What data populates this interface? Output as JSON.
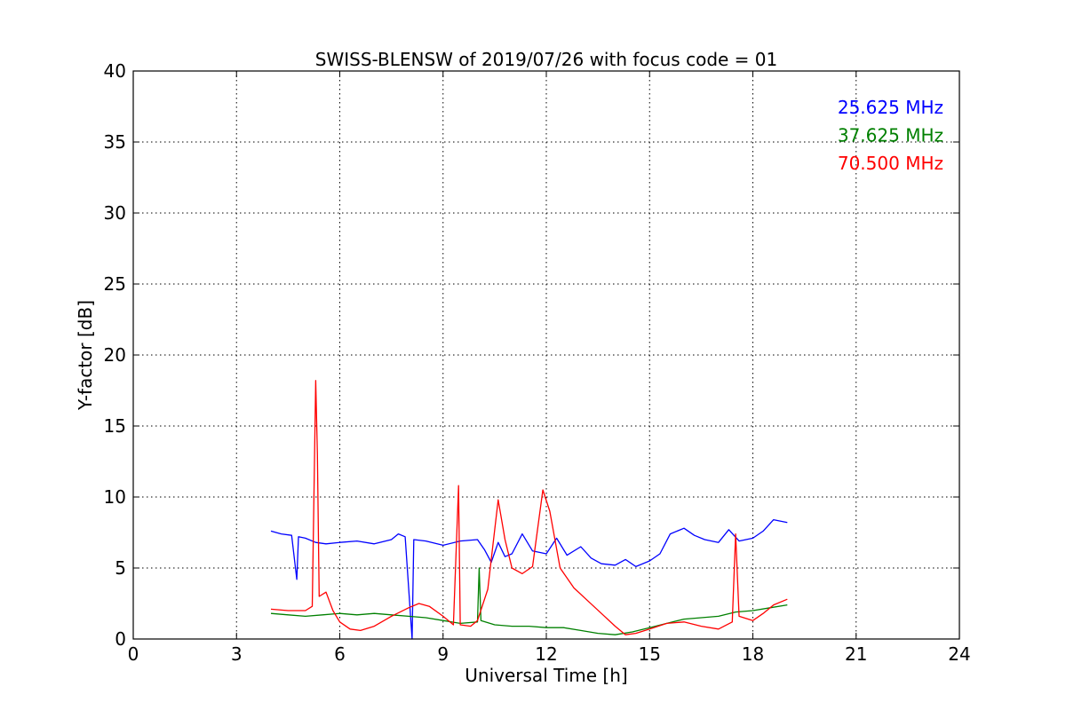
{
  "chart_data": {
    "type": "line",
    "title": "SWISS-BLENSW of 2019/07/26 with focus code = 01",
    "xlabel": "Universal Time [h]",
    "ylabel": "Y-factor [dB]",
    "xlim": [
      0,
      24
    ],
    "ylim": [
      0,
      40
    ],
    "xticks": [
      0,
      3,
      6,
      9,
      12,
      15,
      18,
      21,
      24
    ],
    "yticks": [
      0,
      5,
      10,
      15,
      20,
      25,
      30,
      35,
      40
    ],
    "grid": true,
    "legend_position": "top-right",
    "series": [
      {
        "name": "25.625 MHz",
        "color": "#0000ff",
        "points": [
          [
            4.0,
            7.6
          ],
          [
            4.3,
            7.4
          ],
          [
            4.6,
            7.3
          ],
          [
            4.75,
            4.2
          ],
          [
            4.8,
            7.2
          ],
          [
            5.0,
            7.1
          ],
          [
            5.3,
            6.8
          ],
          [
            5.6,
            6.7
          ],
          [
            6.0,
            6.8
          ],
          [
            6.5,
            6.9
          ],
          [
            7.0,
            6.7
          ],
          [
            7.5,
            7.0
          ],
          [
            7.7,
            7.4
          ],
          [
            7.9,
            7.2
          ],
          [
            8.1,
            0.0
          ],
          [
            8.15,
            7.0
          ],
          [
            8.5,
            6.9
          ],
          [
            9.0,
            6.6
          ],
          [
            9.5,
            6.9
          ],
          [
            10.0,
            7.0
          ],
          [
            10.2,
            6.3
          ],
          [
            10.4,
            5.4
          ],
          [
            10.6,
            6.8
          ],
          [
            10.8,
            5.8
          ],
          [
            11.0,
            6.0
          ],
          [
            11.3,
            7.4
          ],
          [
            11.6,
            6.2
          ],
          [
            12.0,
            6.0
          ],
          [
            12.3,
            7.1
          ],
          [
            12.6,
            5.9
          ],
          [
            13.0,
            6.5
          ],
          [
            13.3,
            5.7
          ],
          [
            13.6,
            5.3
          ],
          [
            14.0,
            5.2
          ],
          [
            14.3,
            5.6
          ],
          [
            14.6,
            5.1
          ],
          [
            15.0,
            5.5
          ],
          [
            15.3,
            6.0
          ],
          [
            15.6,
            7.4
          ],
          [
            16.0,
            7.8
          ],
          [
            16.3,
            7.3
          ],
          [
            16.6,
            7.0
          ],
          [
            17.0,
            6.8
          ],
          [
            17.3,
            7.7
          ],
          [
            17.6,
            6.9
          ],
          [
            18.0,
            7.1
          ],
          [
            18.3,
            7.6
          ],
          [
            18.6,
            8.4
          ],
          [
            19.0,
            8.2
          ]
        ]
      },
      {
        "name": "37.625 MHz",
        "color": "#008000",
        "points": [
          [
            4.0,
            1.8
          ],
          [
            4.5,
            1.7
          ],
          [
            5.0,
            1.6
          ],
          [
            5.5,
            1.7
          ],
          [
            6.0,
            1.8
          ],
          [
            6.5,
            1.7
          ],
          [
            7.0,
            1.8
          ],
          [
            7.5,
            1.7
          ],
          [
            8.0,
            1.6
          ],
          [
            8.5,
            1.5
          ],
          [
            9.0,
            1.3
          ],
          [
            9.5,
            1.1
          ],
          [
            10.0,
            1.2
          ],
          [
            10.05,
            5.0
          ],
          [
            10.1,
            1.3
          ],
          [
            10.5,
            1.0
          ],
          [
            11.0,
            0.9
          ],
          [
            11.5,
            0.9
          ],
          [
            12.0,
            0.8
          ],
          [
            12.5,
            0.8
          ],
          [
            13.0,
            0.6
          ],
          [
            13.5,
            0.4
          ],
          [
            14.0,
            0.3
          ],
          [
            14.5,
            0.5
          ],
          [
            15.0,
            0.8
          ],
          [
            15.5,
            1.1
          ],
          [
            16.0,
            1.4
          ],
          [
            16.5,
            1.5
          ],
          [
            17.0,
            1.6
          ],
          [
            17.5,
            1.9
          ],
          [
            18.0,
            2.0
          ],
          [
            18.5,
            2.2
          ],
          [
            19.0,
            2.4
          ]
        ]
      },
      {
        "name": "70.500 MHz",
        "color": "#ff0000",
        "points": [
          [
            4.0,
            2.1
          ],
          [
            4.5,
            2.0
          ],
          [
            5.0,
            2.0
          ],
          [
            5.2,
            2.3
          ],
          [
            5.3,
            18.2
          ],
          [
            5.35,
            13.0
          ],
          [
            5.4,
            3.0
          ],
          [
            5.6,
            3.3
          ],
          [
            5.8,
            2.0
          ],
          [
            6.0,
            1.2
          ],
          [
            6.3,
            0.7
          ],
          [
            6.6,
            0.6
          ],
          [
            7.0,
            0.9
          ],
          [
            7.5,
            1.6
          ],
          [
            8.0,
            2.2
          ],
          [
            8.3,
            2.5
          ],
          [
            8.6,
            2.3
          ],
          [
            9.0,
            1.6
          ],
          [
            9.3,
            1.0
          ],
          [
            9.45,
            10.8
          ],
          [
            9.5,
            1.0
          ],
          [
            9.8,
            0.9
          ],
          [
            10.0,
            1.3
          ],
          [
            10.3,
            3.5
          ],
          [
            10.6,
            9.8
          ],
          [
            10.8,
            7.0
          ],
          [
            11.0,
            5.0
          ],
          [
            11.3,
            4.6
          ],
          [
            11.6,
            5.1
          ],
          [
            11.9,
            10.5
          ],
          [
            12.1,
            9.0
          ],
          [
            12.4,
            5.0
          ],
          [
            12.8,
            3.6
          ],
          [
            13.2,
            2.7
          ],
          [
            13.6,
            1.8
          ],
          [
            14.0,
            0.9
          ],
          [
            14.3,
            0.3
          ],
          [
            14.6,
            0.4
          ],
          [
            15.0,
            0.7
          ],
          [
            15.5,
            1.1
          ],
          [
            16.0,
            1.2
          ],
          [
            16.5,
            0.9
          ],
          [
            17.0,
            0.7
          ],
          [
            17.4,
            1.2
          ],
          [
            17.5,
            7.4
          ],
          [
            17.6,
            1.6
          ],
          [
            18.0,
            1.3
          ],
          [
            18.3,
            1.8
          ],
          [
            18.6,
            2.4
          ],
          [
            19.0,
            2.8
          ]
        ]
      }
    ]
  }
}
